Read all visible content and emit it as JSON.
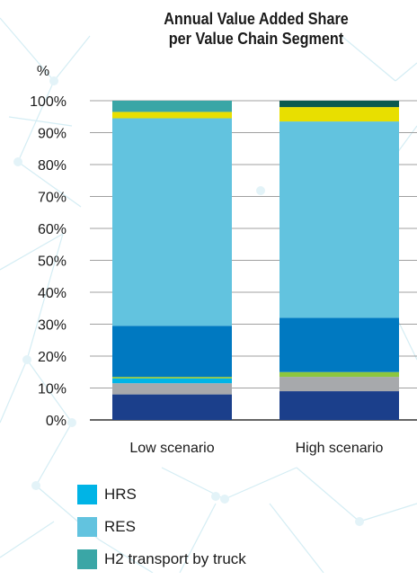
{
  "chart_data": {
    "type": "bar",
    "stacked": true,
    "title_lines": [
      "Annual Value Added Share",
      "per Value Chain Segment"
    ],
    "ylabel": "%",
    "ylim": [
      0,
      100
    ],
    "y_ticks": [
      "0%",
      "10%",
      "20%",
      "30%",
      "40%",
      "50%",
      "60%",
      "70%",
      "80%",
      "90%",
      "100%"
    ],
    "categories": [
      "Low scenario",
      "High scenario"
    ],
    "grid": true,
    "series": [
      {
        "key": "seg1",
        "color": "#1b3f8b",
        "values": [
          8,
          9
        ]
      },
      {
        "key": "seg2",
        "color": "#a7a9ac",
        "values": [
          3.5,
          4.5
        ]
      },
      {
        "key": "HRS",
        "name": "HRS",
        "color": "#00b4e6",
        "values": [
          1.5,
          0
        ]
      },
      {
        "key": "seg4",
        "color": "#8dc63f",
        "values": [
          0.5,
          1.5
        ]
      },
      {
        "key": "seg5",
        "color": "#0079c1",
        "values": [
          16,
          17
        ]
      },
      {
        "key": "RES",
        "name": "RES",
        "color": "#62c3df",
        "values": [
          65,
          61.5
        ]
      },
      {
        "key": "seg7",
        "color": "#e8df00",
        "values": [
          2,
          4.5
        ]
      },
      {
        "key": "H2 transport by truck",
        "name": "H2 transport by truck",
        "color": "#3aa6a6",
        "values": [
          3.5,
          0
        ]
      },
      {
        "key": "seg9",
        "color": "#0b5a4f",
        "values": [
          0,
          2
        ]
      }
    ],
    "legend": [
      "HRS",
      "RES",
      "H2 transport by truck"
    ],
    "legend_colors": [
      "#00b4e6",
      "#62c3df",
      "#3aa6a6"
    ]
  }
}
